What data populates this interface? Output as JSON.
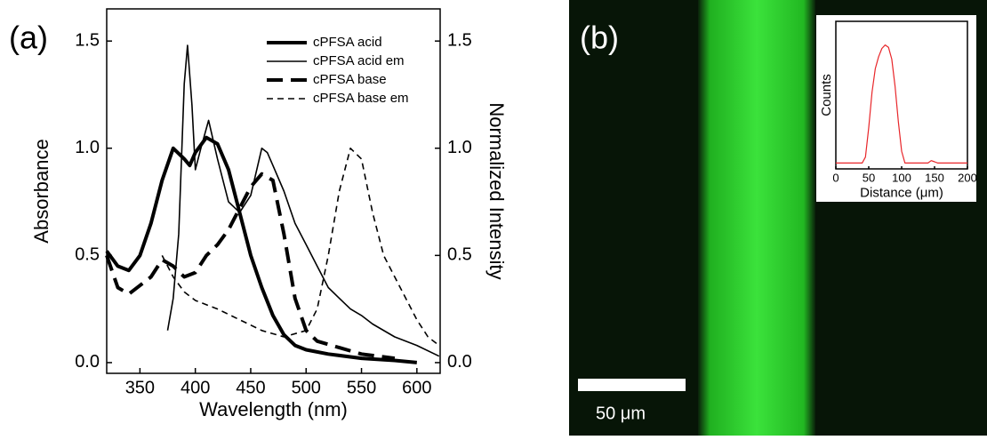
{
  "chart_data": [
    {
      "type": "line",
      "panel_label": "(a)",
      "xlabel": "Wavelength (nm)",
      "ylabel": "Absorbance",
      "y2label": "Normalized Intensity",
      "xlim": [
        320,
        621
      ],
      "xticks": [
        350,
        400,
        450,
        500,
        550,
        600
      ],
      "ylim": [
        -0.05,
        1.65
      ],
      "yticks": [
        {
          "value": 0,
          "label": "0.0"
        },
        0.5,
        {
          "value": 1,
          "label": "1.0"
        },
        1.5
      ],
      "y2lim": [
        -0.05,
        1.65
      ],
      "y2ticks": [
        {
          "value": 0,
          "label": "0.0"
        },
        0.5,
        {
          "value": 1,
          "label": "1.0"
        },
        1.5
      ],
      "legend": "upper right",
      "series": [
        {
          "name": "cPFSA acid",
          "color": "#000000",
          "line_width": 4,
          "dash": "none",
          "x": [
            320,
            330,
            340,
            350,
            360,
            370,
            380,
            390,
            395,
            400,
            410,
            420,
            430,
            440,
            450,
            460,
            470,
            480,
            490,
            500,
            520,
            550,
            580,
            600
          ],
          "values": [
            0.52,
            0.45,
            0.43,
            0.5,
            0.65,
            0.85,
            1.0,
            0.95,
            0.92,
            0.98,
            1.05,
            1.02,
            0.9,
            0.7,
            0.5,
            0.35,
            0.22,
            0.13,
            0.08,
            0.06,
            0.04,
            0.02,
            0.01,
            0.0
          ]
        },
        {
          "name": "cPFSA acid em",
          "color": "#000000",
          "line_width": 1.6,
          "dash": "none",
          "axis": "y2",
          "x": [
            375,
            380,
            385,
            390,
            393,
            397,
            400,
            405,
            412,
            420,
            430,
            440,
            450,
            460,
            465,
            470,
            480,
            490,
            500,
            510,
            520,
            530,
            540,
            550,
            560,
            580,
            600,
            620
          ],
          "values": [
            0.15,
            0.3,
            0.6,
            1.3,
            1.48,
            1.2,
            0.9,
            1.0,
            1.13,
            0.95,
            0.75,
            0.7,
            0.78,
            1.0,
            0.98,
            0.92,
            0.8,
            0.65,
            0.55,
            0.45,
            0.35,
            0.3,
            0.25,
            0.22,
            0.18,
            0.12,
            0.08,
            0.03
          ]
        },
        {
          "name": "cPFSA base",
          "color": "#000000",
          "line_width": 4,
          "dash": "18 9",
          "x": [
            320,
            330,
            340,
            360,
            370,
            380,
            390,
            400,
            410,
            420,
            430,
            440,
            450,
            460,
            470,
            480,
            490,
            500,
            510,
            530,
            550,
            580
          ],
          "values": [
            0.5,
            0.35,
            0.32,
            0.4,
            0.48,
            0.45,
            0.4,
            0.42,
            0.5,
            0.55,
            0.62,
            0.72,
            0.82,
            0.88,
            0.85,
            0.6,
            0.3,
            0.15,
            0.1,
            0.07,
            0.04,
            0.02
          ]
        },
        {
          "name": "cPFSA base em",
          "color": "#000000",
          "line_width": 1.6,
          "dash": "7 5",
          "axis": "y2",
          "x": [
            370,
            380,
            390,
            400,
            420,
            440,
            460,
            480,
            500,
            510,
            520,
            530,
            540,
            550,
            560,
            570,
            580,
            600,
            610,
            620
          ],
          "values": [
            0.5,
            0.4,
            0.33,
            0.29,
            0.25,
            0.2,
            0.15,
            0.12,
            0.15,
            0.25,
            0.5,
            0.8,
            1.0,
            0.95,
            0.7,
            0.5,
            0.4,
            0.2,
            0.12,
            0.08
          ]
        }
      ]
    },
    {
      "type": "line",
      "xlabel": "Distance (μm)",
      "ylabel": "Counts",
      "xlim": [
        0,
        200
      ],
      "xticks": [
        0,
        50,
        100,
        150,
        200
      ],
      "ylim": [
        -0.05,
        1.2
      ],
      "series": [
        {
          "color": "#e8262a",
          "line_width": 1.2,
          "dash": "none",
          "x": [
            0,
            40,
            45,
            50,
            55,
            60,
            65,
            70,
            75,
            80,
            85,
            90,
            95,
            100,
            105,
            140,
            145,
            150,
            155,
            200
          ],
          "values": [
            0,
            0,
            0.05,
            0.3,
            0.6,
            0.8,
            0.9,
            0.97,
            1,
            0.98,
            0.88,
            0.65,
            0.35,
            0.1,
            0,
            0,
            0.02,
            0.01,
            0,
            0
          ]
        }
      ]
    }
  ],
  "image": {
    "panel_label": "(b)",
    "scale_bar_label": "50 μm"
  }
}
